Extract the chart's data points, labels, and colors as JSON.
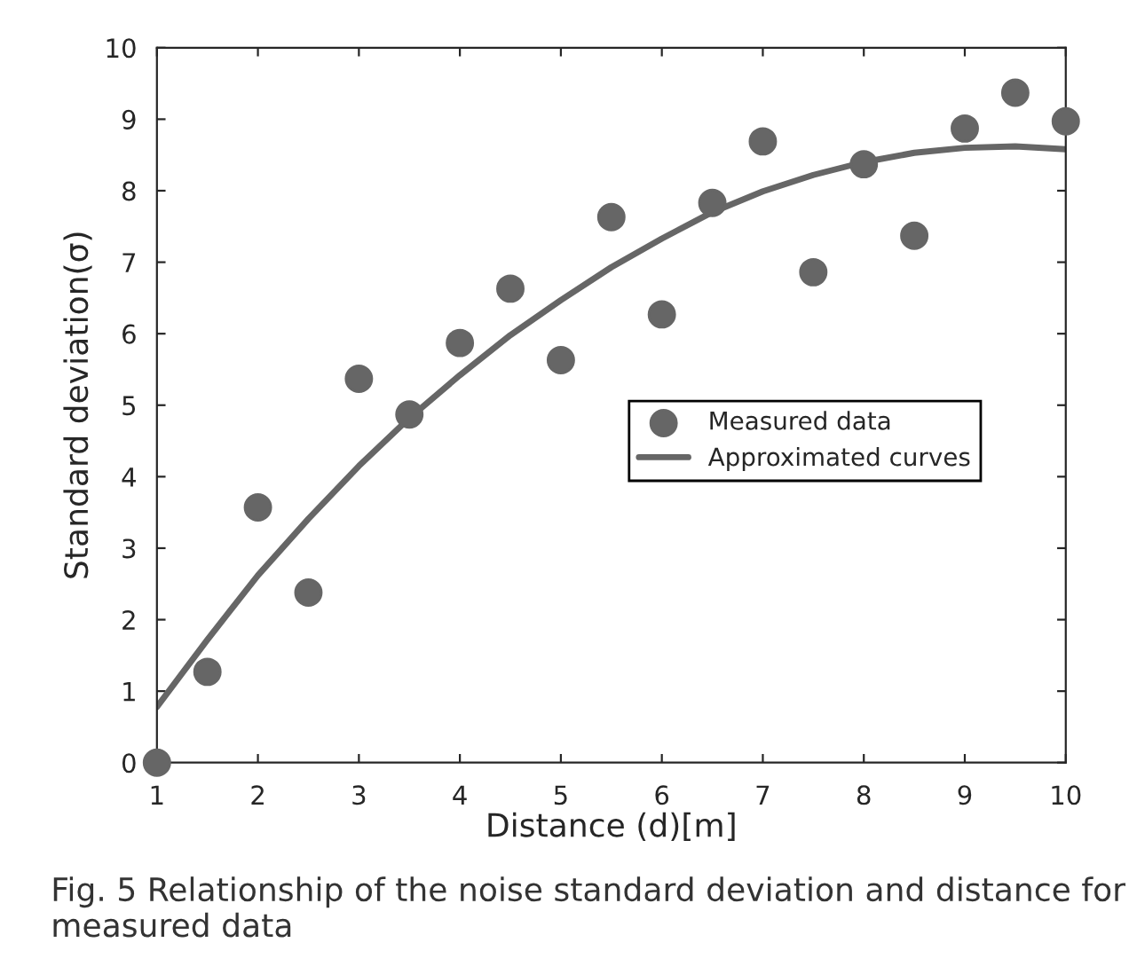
{
  "chart_data": {
    "type": "scatter",
    "xlabel": "Distance (d)[m]",
    "ylabel": "Standard deviation(σ)",
    "annotations": [
      "Fig. 5 Relationship of the noise standard deviation and distance for measured data"
    ],
    "series": [
      {
        "name": "Measured data",
        "color": "#666666",
        "marker": "circle",
        "x": [
          1,
          1.5,
          2,
          2.5,
          3,
          3.5,
          4,
          4.5,
          5,
          5.5,
          6,
          6.5,
          7,
          7.5,
          8,
          8.5,
          9,
          9.5,
          10
        ],
        "values": [
          0.0,
          1.27,
          3.57,
          2.38,
          5.37,
          4.87,
          5.87,
          6.63,
          5.63,
          7.63,
          6.27,
          7.83,
          8.69,
          6.86,
          8.37,
          7.37,
          8.87,
          9.37,
          8.97
        ]
      },
      {
        "name": "Approximated curves",
        "type": "line",
        "color": "#666666",
        "line_style": "solid",
        "x": [
          1,
          1.5,
          2,
          2.5,
          3,
          3.5,
          4,
          4.5,
          5,
          5.5,
          6,
          6.5,
          7,
          7.5,
          8,
          8.5,
          9,
          9.5,
          10
        ],
        "values": [
          0.78,
          1.72,
          2.62,
          3.41,
          4.15,
          4.82,
          5.42,
          5.98,
          6.47,
          6.93,
          7.33,
          7.7,
          7.99,
          8.22,
          8.4,
          8.53,
          8.6,
          8.62,
          8.58
        ]
      }
    ],
    "xlim": [
      1,
      10
    ],
    "xticks": [
      1,
      2,
      3,
      4,
      5,
      6,
      7,
      8,
      9,
      10
    ],
    "ylim": [
      0,
      10
    ],
    "yticks": [
      0,
      1,
      2,
      3,
      4,
      5,
      6,
      7,
      8,
      9,
      10
    ],
    "grid": false,
    "legend": "right"
  }
}
